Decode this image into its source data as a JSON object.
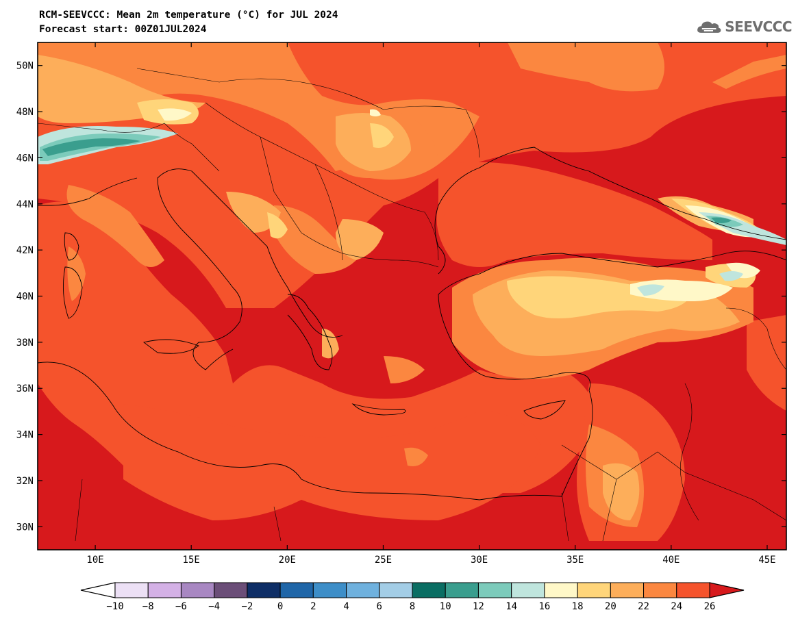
{
  "header": {
    "title_line1": "RCM-SEEVCCC: Mean 2m temperature (°C) for JUL 2024",
    "title_line2": "Forecast start: 00Z01JUL2024"
  },
  "logo": {
    "text": "SEEVCCC",
    "icon": "cloud-logo-icon"
  },
  "map": {
    "lon_range": [
      7,
      46
    ],
    "lat_range": [
      29,
      51
    ],
    "lon_ticks": [
      {
        "value": 10,
        "label": "10E"
      },
      {
        "value": 15,
        "label": "15E"
      },
      {
        "value": 20,
        "label": "20E"
      },
      {
        "value": 25,
        "label": "25E"
      },
      {
        "value": 30,
        "label": "30E"
      },
      {
        "value": 35,
        "label": "35E"
      },
      {
        "value": 40,
        "label": "40E"
      },
      {
        "value": 45,
        "label": "45E"
      }
    ],
    "lat_ticks": [
      {
        "value": 50,
        "label": "50N"
      },
      {
        "value": 48,
        "label": "48N"
      },
      {
        "value": 46,
        "label": "46N"
      },
      {
        "value": 44,
        "label": "44N"
      },
      {
        "value": 42,
        "label": "42N"
      },
      {
        "value": 40,
        "label": "40N"
      },
      {
        "value": 38,
        "label": "38N"
      },
      {
        "value": 36,
        "label": "36N"
      },
      {
        "value": 34,
        "label": "34N"
      },
      {
        "value": 32,
        "label": "32N"
      },
      {
        "value": 30,
        "label": "30N"
      }
    ]
  },
  "colorbar": {
    "labels": [
      "-10",
      "-8",
      "-6",
      "-4",
      "-2",
      "0",
      "2",
      "4",
      "6",
      "8",
      "10",
      "12",
      "14",
      "16",
      "18",
      "20",
      "22",
      "24",
      "26"
    ],
    "low_color": "#ffffff",
    "high_color": "#d7191c",
    "colors": [
      "#ece0f5",
      "#d4b1e6",
      "#a887c2",
      "#6b4e78",
      "#0e2e66",
      "#1f66a8",
      "#3d8ec8",
      "#6fb1de",
      "#a3cde6",
      "#0a6e63",
      "#3a9e8e",
      "#7ccbbb",
      "#bfe5dd",
      "#fff8c8",
      "#ffd57a",
      "#fdae5a",
      "#fb8740",
      "#f5532c"
    ]
  }
}
